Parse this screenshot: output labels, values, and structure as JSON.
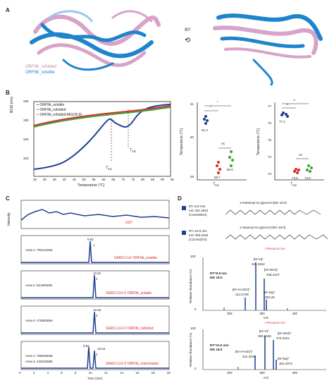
{
  "panelA": {
    "label": "A",
    "legend": [
      {
        "text": "ORF9b_refolded",
        "color": "#d8a3c8"
      },
      {
        "text": "ORF9b_soluble",
        "color": "#1f84cc"
      }
    ],
    "rotation": "90°"
  },
  "panelB": {
    "label": "B",
    "bcm": {
      "ylabel": "BCM (nm)",
      "xlabel": "Temperature (°C)",
      "xticks": [
        "25",
        "30",
        "35",
        "40",
        "45",
        "50",
        "55",
        "60",
        "65",
        "70",
        "75",
        "80",
        "85",
        "90",
        "95"
      ],
      "yticks": [
        "320",
        "325",
        "330",
        "335"
      ],
      "legend": [
        "ORF9b_soluble",
        "ORF9b_refolded",
        "ORF9b_refolded-MG(16:0)"
      ],
      "tm1": "T",
      "tm1_sub": "m1",
      "tm2": "T",
      "tm2_sub": "m2"
    },
    "tm1_plot": {
      "ylabel": "Temperature (°C)",
      "yticks": [
        "59",
        "60",
        "61"
      ],
      "x": "T",
      "x_sub": "m1",
      "values": [
        "61.3",
        "59.7",
        "60.0"
      ],
      "sig": [
        "*",
        "*",
        "ns"
      ]
    },
    "tm2_plot": {
      "ylabel": "Temperature (°C)",
      "yticks": [
        "73",
        "74",
        "75",
        "76",
        "77"
      ],
      "x": "T",
      "x_sub": "m2",
      "values": [
        "77.1",
        "73.8",
        "73.9"
      ],
      "sig": [
        "**",
        "**",
        "ns"
      ]
    }
  },
  "panelC": {
    "label": "C",
    "traces": [
      {
        "name": "GST",
        "area": "",
        "peaks": []
      },
      {
        "name": "SARS-CoV ORF9b_soluble",
        "area": "Area-1: 702131825",
        "peaks": [
          "9.82"
        ],
        "num": [
          "1"
        ]
      },
      {
        "name": "SARS-CoV-2 ORF9b_soluble",
        "area": "Area-2: 631993082",
        "peaks": [
          "10.52"
        ],
        "num": [
          "2"
        ]
      },
      {
        "name": "SARS-CoV-2 ORF9b_refolded",
        "area": "Area-2: 478563659",
        "peaks": [
          "10.55"
        ],
        "num": [
          "2"
        ]
      },
      {
        "name": "SARS-CoV-2 ORF9b_mammalian",
        "area": "Area-1: 756836538",
        "area2": "Area-2: 440220696",
        "peaks": [
          "9.82",
          "10.53"
        ],
        "num": [
          "1",
          "2"
        ]
      }
    ],
    "ylabel": "Intensity",
    "xlabel": "Time (min)",
    "xticks": [
      "0",
      "2",
      "4",
      "6",
      "8",
      "10",
      "12",
      "14",
      "16",
      "18",
      "20"
    ]
  },
  "panelD": {
    "label": "D",
    "entry1": {
      "rt": "RT=9.8 min",
      "mz": "m/z 331.2842",
      "formula": "(C19H38O4)",
      "name": "1-Palmitoyl-sn-glycerol   (MG 16:0)"
    },
    "entry2": {
      "rt": "RT=10.5 min",
      "mz": "m/z 359.3155",
      "formula": "(C21H42O4)",
      "name": "1-Stearoyl-sn-glycerol   (MG 18:0)"
    },
    "precursor": "Precursor Ion",
    "spec1": {
      "title1": "RT=9.8 min",
      "title2": "MG 16:0",
      "peaks": [
        "[M+H]⁺",
        "331.2842",
        "[M+NH4]⁺",
        "348.3107",
        "[M+H-H2O]⁺",
        "313.2736",
        "[M+Na]⁺",
        "353.26"
      ],
      "xticks": [
        "300",
        "350",
        "400"
      ],
      "yticks": [
        "0",
        "20",
        "40",
        "60",
        "80",
        "100"
      ]
    },
    "spec2": {
      "title1": "RT=10.5 min",
      "title2": "MG 18:0",
      "peaks": [
        "[M+H]⁺",
        "359.3155",
        "[M+NH4]⁺",
        "376.3422",
        "[M+H-H2O]⁺",
        "341.3049",
        "[M+Na]⁺",
        "381.2973"
      ],
      "xticks": [
        "300",
        "350",
        "400"
      ],
      "yticks": [
        "0",
        "20",
        "40",
        "60",
        "80",
        "100"
      ]
    },
    "ylabel": "Relative Abundance (%)",
    "xlabel": "m/z"
  },
  "colors": {
    "blue": "#1f3f8f",
    "red": "#d92b2b",
    "green": "#3aa33a",
    "pink": "#d8a3c8",
    "lightblue": "#1f84cc"
  }
}
